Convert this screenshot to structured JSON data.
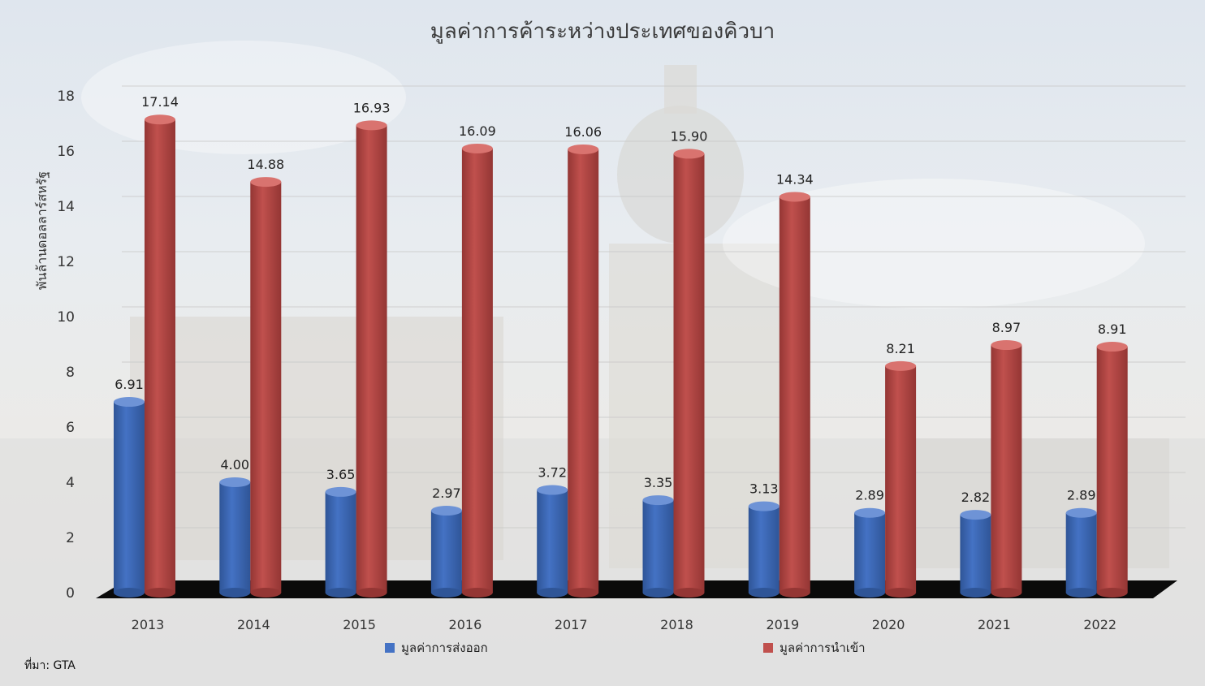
{
  "chart_data": {
    "type": "bar",
    "title": "มูลค่าการค้าระหว่างประเทศของคิวบา",
    "ylabel": "พันล้านดอลลาร์สหรัฐ",
    "xlabel": "",
    "categories": [
      "2013",
      "2014",
      "2015",
      "2016",
      "2017",
      "2018",
      "2019",
      "2020",
      "2021",
      "2022"
    ],
    "series": [
      {
        "name": "มูลค่าการส่งออก",
        "color": "#4472c4",
        "values": [
          6.91,
          4.0,
          3.65,
          2.97,
          3.72,
          3.35,
          3.13,
          2.89,
          2.82,
          2.89
        ]
      },
      {
        "name": "มูลค่าการนำเข้า",
        "color": "#c0504d",
        "values": [
          17.14,
          14.88,
          16.93,
          16.09,
          16.06,
          15.9,
          14.34,
          8.21,
          8.97,
          8.91
        ]
      }
    ],
    "ylim": [
      0,
      18
    ],
    "yticks": [
      0,
      2,
      4,
      6,
      8,
      10,
      12,
      14,
      16,
      18
    ],
    "grid": true,
    "legend": "bottom",
    "data_labels": true,
    "bar_shape": "cylinder"
  },
  "source": "ที่มา: GTA"
}
